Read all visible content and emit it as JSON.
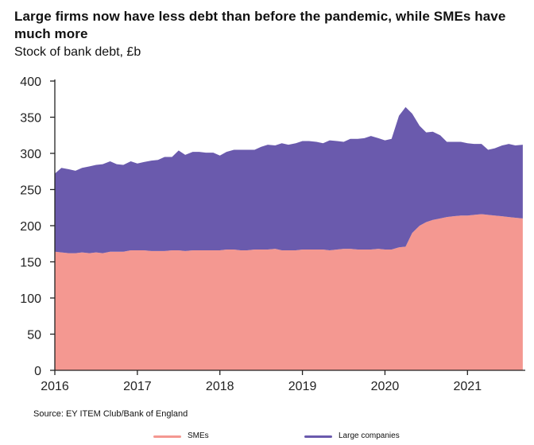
{
  "chart_data": {
    "type": "area",
    "title": "Large firms now have less debt than before the pandemic, while SMEs have much more",
    "subtitle": "Stock of bank debt, £b",
    "source": "Source: EY ITEM Club/Bank of England",
    "xlim": [
      2016,
      2021.7
    ],
    "ylim": [
      0,
      400
    ],
    "x_ticks": [
      2016,
      2017,
      2018,
      2019,
      2020,
      2021
    ],
    "x_tick_labels": [
      "2016",
      "2017",
      "2018",
      "2019",
      "2020",
      "2021"
    ],
    "y_ticks": [
      0,
      50,
      100,
      150,
      200,
      250,
      300,
      350,
      400
    ],
    "y_tick_labels": [
      "0",
      "50",
      "100",
      "150",
      "200",
      "250",
      "300",
      "350",
      "400"
    ],
    "stacked": true,
    "x": [
      2016.0,
      2016.08,
      2016.17,
      2016.25,
      2016.33,
      2016.42,
      2016.5,
      2016.58,
      2016.67,
      2016.75,
      2016.83,
      2016.92,
      2017.0,
      2017.08,
      2017.17,
      2017.25,
      2017.33,
      2017.42,
      2017.5,
      2017.58,
      2017.67,
      2017.75,
      2017.83,
      2017.92,
      2018.0,
      2018.08,
      2018.17,
      2018.25,
      2018.33,
      2018.42,
      2018.5,
      2018.58,
      2018.67,
      2018.75,
      2018.83,
      2018.92,
      2019.0,
      2019.08,
      2019.17,
      2019.25,
      2019.33,
      2019.42,
      2019.5,
      2019.58,
      2019.67,
      2019.75,
      2019.83,
      2019.92,
      2020.0,
      2020.08,
      2020.17,
      2020.25,
      2020.33,
      2020.42,
      2020.5,
      2020.58,
      2020.67,
      2020.75,
      2020.83,
      2020.92,
      2021.0,
      2021.08,
      2021.17,
      2021.25,
      2021.33,
      2021.42,
      2021.5,
      2021.58,
      2021.67
    ],
    "series": [
      {
        "name": "SMEs",
        "color": "#f49891",
        "values": [
          164,
          163,
          162,
          162,
          163,
          162,
          163,
          162,
          164,
          164,
          164,
          166,
          166,
          166,
          165,
          165,
          165,
          166,
          166,
          165,
          166,
          166,
          166,
          166,
          166,
          167,
          167,
          166,
          166,
          167,
          167,
          167,
          168,
          166,
          166,
          166,
          167,
          167,
          167,
          167,
          166,
          167,
          168,
          168,
          167,
          167,
          167,
          168,
          167,
          167,
          170,
          171,
          190,
          200,
          205,
          208,
          210,
          212,
          213,
          214,
          214,
          215,
          216,
          215,
          214,
          213,
          212,
          211,
          210
        ]
      },
      {
        "name": "Large companies",
        "color": "#6a5aad",
        "values": [
          108,
          117,
          116,
          114,
          117,
          120,
          121,
          123,
          125,
          121,
          120,
          123,
          120,
          122,
          125,
          126,
          130,
          129,
          138,
          133,
          136,
          136,
          135,
          135,
          131,
          135,
          138,
          139,
          139,
          138,
          142,
          145,
          143,
          148,
          146,
          148,
          150,
          150,
          149,
          147,
          152,
          150,
          148,
          152,
          153,
          154,
          157,
          153,
          151,
          153,
          182,
          193,
          165,
          138,
          124,
          122,
          115,
          104,
          103,
          102,
          100,
          98,
          97,
          90,
          93,
          98,
          101,
          100,
          102
        ]
      }
    ],
    "legend_position": "bottom",
    "grid": false
  }
}
